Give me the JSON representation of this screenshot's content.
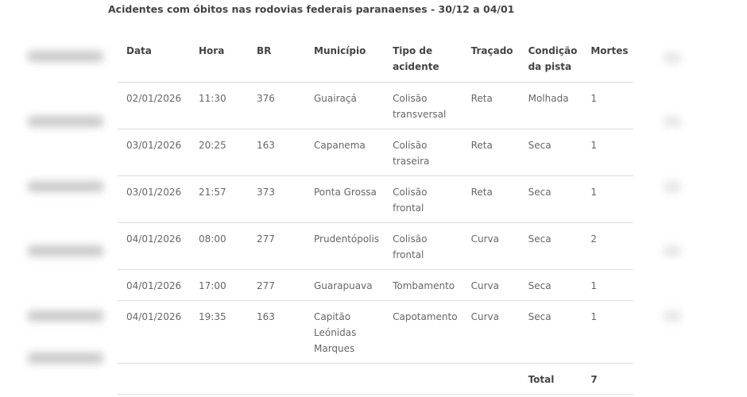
{
  "title": "Acidentes com óbitos nas rodovias federais paranaenses - 30/12 a 04/01",
  "headers": {
    "data": "Data",
    "hora": "Hora",
    "br": "BR",
    "municipio": "Município",
    "tipo": "Tipo de acidente",
    "tracado": "Traçado",
    "condicao": "Condição da pista",
    "mortes": "Mortes"
  },
  "rows": [
    {
      "data": "02/01/2026",
      "hora": "11:30",
      "br": "376",
      "municipio": "Guairaçá",
      "tipo": "Colisão transversal",
      "tracado": "Reta",
      "condicao": "Molhada",
      "mortes": "1"
    },
    {
      "data": "03/01/2026",
      "hora": "20:25",
      "br": "163",
      "municipio": "Capanema",
      "tipo": "Colisão traseira",
      "tracado": "Reta",
      "condicao": "Seca",
      "mortes": "1"
    },
    {
      "data": "03/01/2026",
      "hora": "21:57",
      "br": "373",
      "municipio": "Ponta Grossa",
      "tipo": "Colisão frontal",
      "tracado": "Reta",
      "condicao": "Seca",
      "mortes": "1"
    },
    {
      "data": "04/01/2026",
      "hora": "08:00",
      "br": "277",
      "municipio": "Prudentópolis",
      "tipo": "Colisão frontal",
      "tracado": "Curva",
      "condicao": "Seca",
      "mortes": "2"
    },
    {
      "data": "04/01/2026",
      "hora": "17:00",
      "br": "277",
      "municipio": "Guarapuava",
      "tipo": "Tombamento",
      "tracado": "Curva",
      "condicao": "Seca",
      "mortes": "1"
    },
    {
      "data": "04/01/2026",
      "hora": "19:35",
      "br": "163",
      "municipio": "Capitão Leónidas Marques",
      "tipo": "Capotamento",
      "tracado": "Curva",
      "condicao": "Seca",
      "mortes": "1"
    }
  ],
  "total": {
    "label": "Total",
    "value": "7"
  }
}
